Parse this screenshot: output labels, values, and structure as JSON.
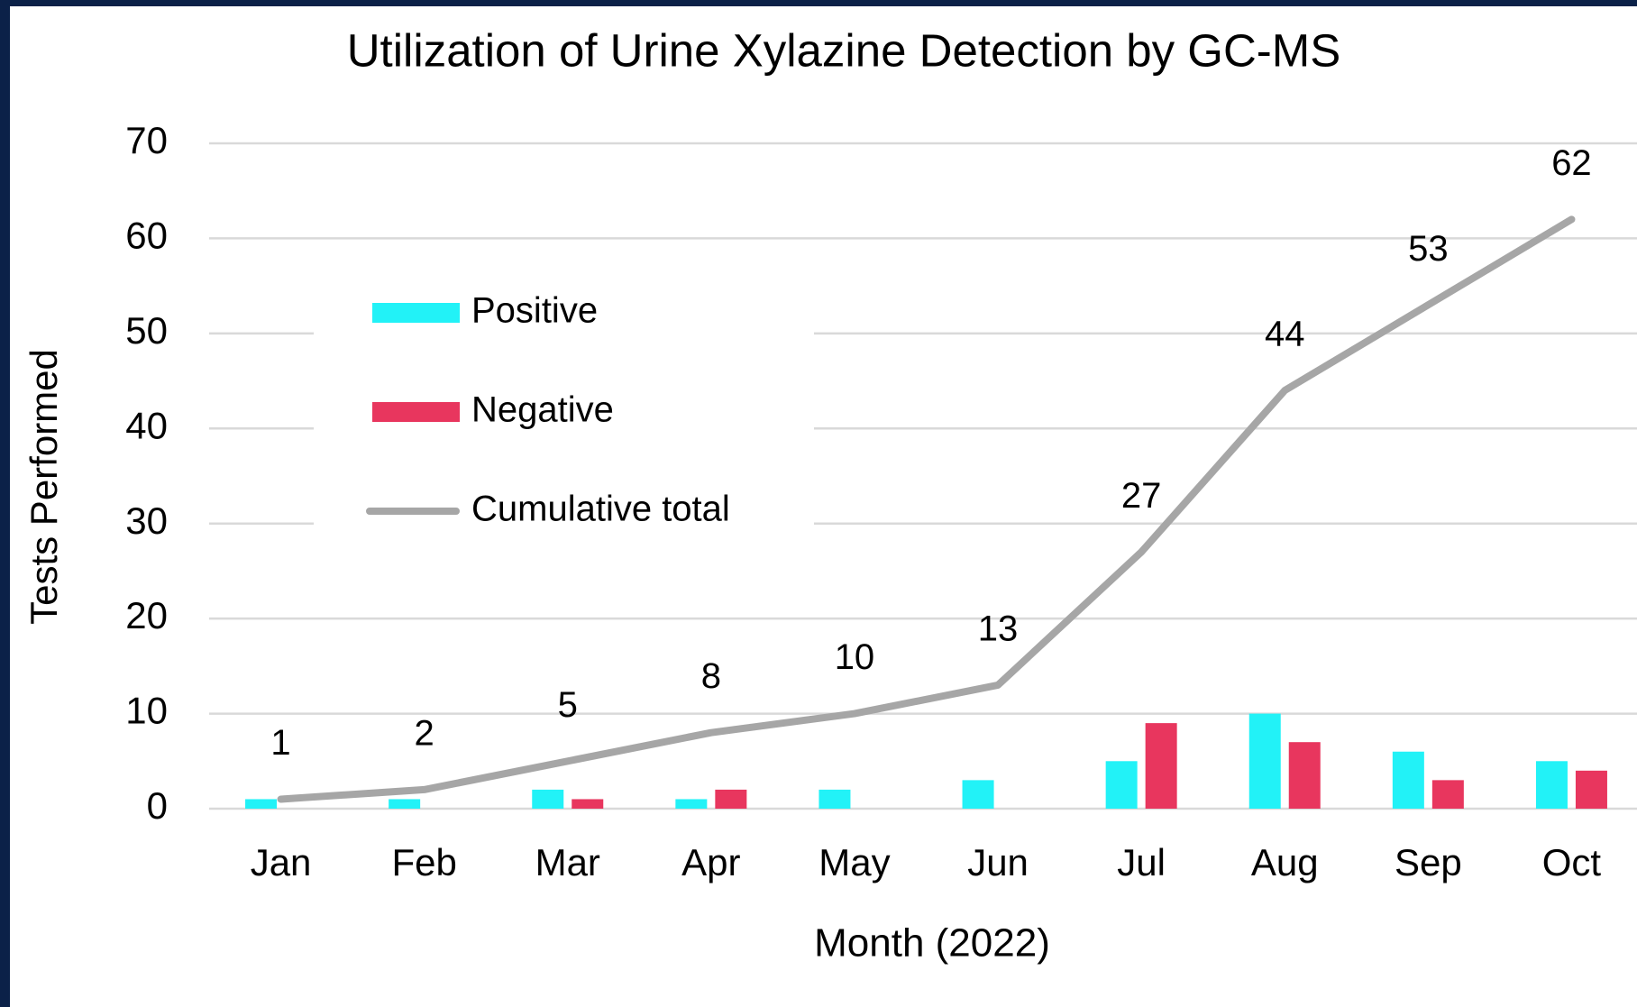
{
  "chart_data": {
    "type": "bar",
    "title": "Utilization of Urine Xylazine Detection by GC-MS",
    "x_label": "Month (2022)",
    "y_label": "Tests Performed",
    "categories": [
      "Jan",
      "Feb",
      "Mar",
      "Apr",
      "May",
      "Jun",
      "Jul",
      "Aug",
      "Sep",
      "Oct"
    ],
    "series": [
      {
        "name": "Positive",
        "color": "#22f2f7",
        "values": [
          1,
          1,
          2,
          1,
          2,
          3,
          5,
          10,
          6,
          5
        ]
      },
      {
        "name": "Negative",
        "color": "#e8365e",
        "values": [
          0,
          0,
          1,
          2,
          0,
          0,
          9,
          7,
          3,
          4
        ]
      },
      {
        "name": "Cumulative total",
        "color": "#a6a6a6",
        "type": "line",
        "data_labels": true,
        "values": [
          1,
          2,
          5,
          8,
          10,
          13,
          27,
          44,
          53,
          62
        ]
      }
    ],
    "ylim": [
      0,
      70
    ],
    "yticks": [
      0,
      10,
      20,
      30,
      40,
      50,
      60,
      70
    ],
    "grid": true,
    "legend_position": "upper left"
  }
}
